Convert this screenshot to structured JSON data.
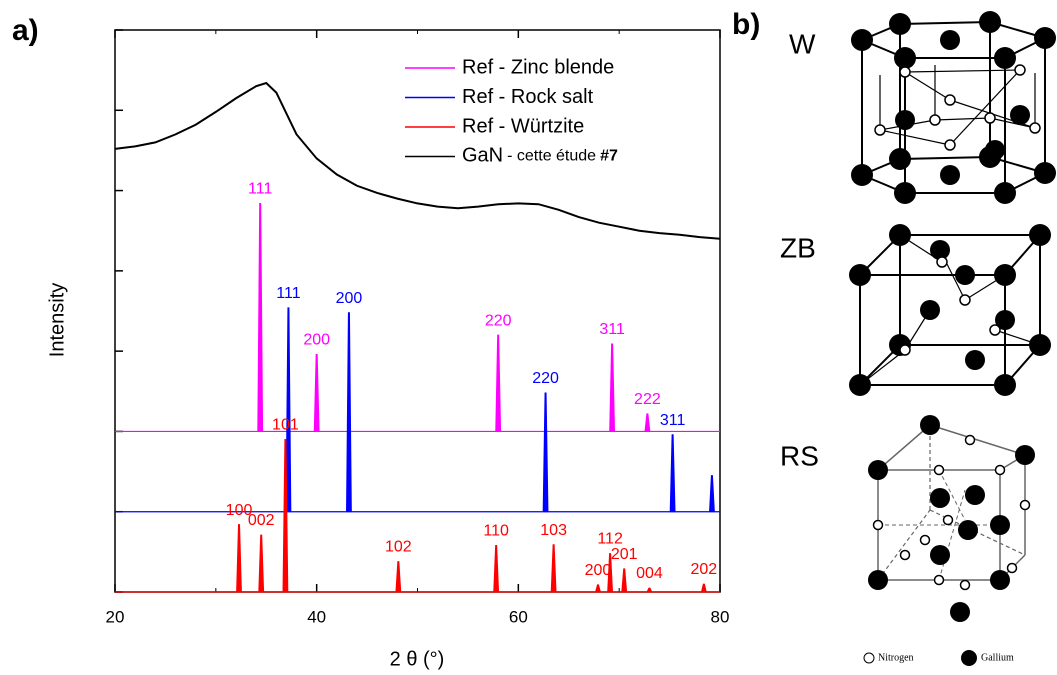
{
  "chart_data": {
    "type": "line",
    "panel_a": "a)",
    "panel_b": "b)",
    "xlabel": "2 θ (°)",
    "ylabel": "Intensity",
    "xlim": [
      20,
      80
    ],
    "xticks": [
      20,
      40,
      60,
      80
    ],
    "xminor": [
      30,
      50,
      70
    ],
    "ylim": [
      0,
      7
    ],
    "yticks": [
      0,
      1,
      2,
      3,
      4,
      5,
      6,
      7
    ],
    "series": [
      {
        "name": "GaN",
        "note": "- cette étude",
        "tag": "#7",
        "color": "#000000",
        "x": [
          20,
          22,
          24,
          26,
          28,
          30,
          32,
          34,
          35,
          36,
          38,
          40,
          42,
          44,
          46,
          48,
          50,
          52,
          54,
          56,
          58,
          60,
          62,
          64,
          66,
          68,
          70,
          72,
          74,
          76,
          78,
          80
        ],
        "values": [
          5.52,
          5.55,
          5.6,
          5.7,
          5.82,
          5.98,
          6.15,
          6.3,
          6.34,
          6.22,
          5.7,
          5.4,
          5.2,
          5.06,
          4.97,
          4.9,
          4.84,
          4.8,
          4.78,
          4.8,
          4.83,
          4.84,
          4.83,
          4.76,
          4.67,
          4.6,
          4.55,
          4.5,
          4.47,
          4.45,
          4.42,
          4.4
        ]
      }
    ],
    "references": [
      {
        "name": "Ref - Zinc blende",
        "color": "#ff00ff",
        "offset": 2,
        "x": [
          34.4,
          40.0,
          58.0,
          69.3,
          72.8
        ],
        "values": [
          2.84,
          0.96,
          1.2,
          1.09,
          0.22
        ],
        "labels": [
          "111",
          "200",
          "220",
          "311",
          "222"
        ]
      },
      {
        "name": "Ref - Rock salt",
        "color": "#0000ff",
        "offset": 1,
        "x": [
          37.2,
          43.2,
          62.7,
          75.3,
          79.2
        ],
        "values": [
          2.54,
          2.48,
          1.48,
          0.96,
          0.45
        ],
        "labels": [
          "111",
          "200",
          "220",
          "311",
          null
        ]
      },
      {
        "name": "Ref - Würtzite",
        "color": "#ff0000",
        "offset": 0,
        "x": [
          32.3,
          34.5,
          36.9,
          48.1,
          57.8,
          63.5,
          67.9,
          69.1,
          70.5,
          73.0,
          78.4
        ],
        "values": [
          0.84,
          0.71,
          1.9,
          0.38,
          0.58,
          0.59,
          0.09,
          0.48,
          0.29,
          0.05,
          0.1
        ],
        "labels": [
          "100",
          "002",
          "101",
          "102",
          "110",
          "103",
          "200",
          "112",
          "201",
          "004",
          "202"
        ]
      }
    ],
    "structures": {
      "w": "W",
      "zb": "ZB",
      "rs": "RS",
      "nitrogen": "Nitrogen",
      "gallium": "Gallium"
    }
  }
}
